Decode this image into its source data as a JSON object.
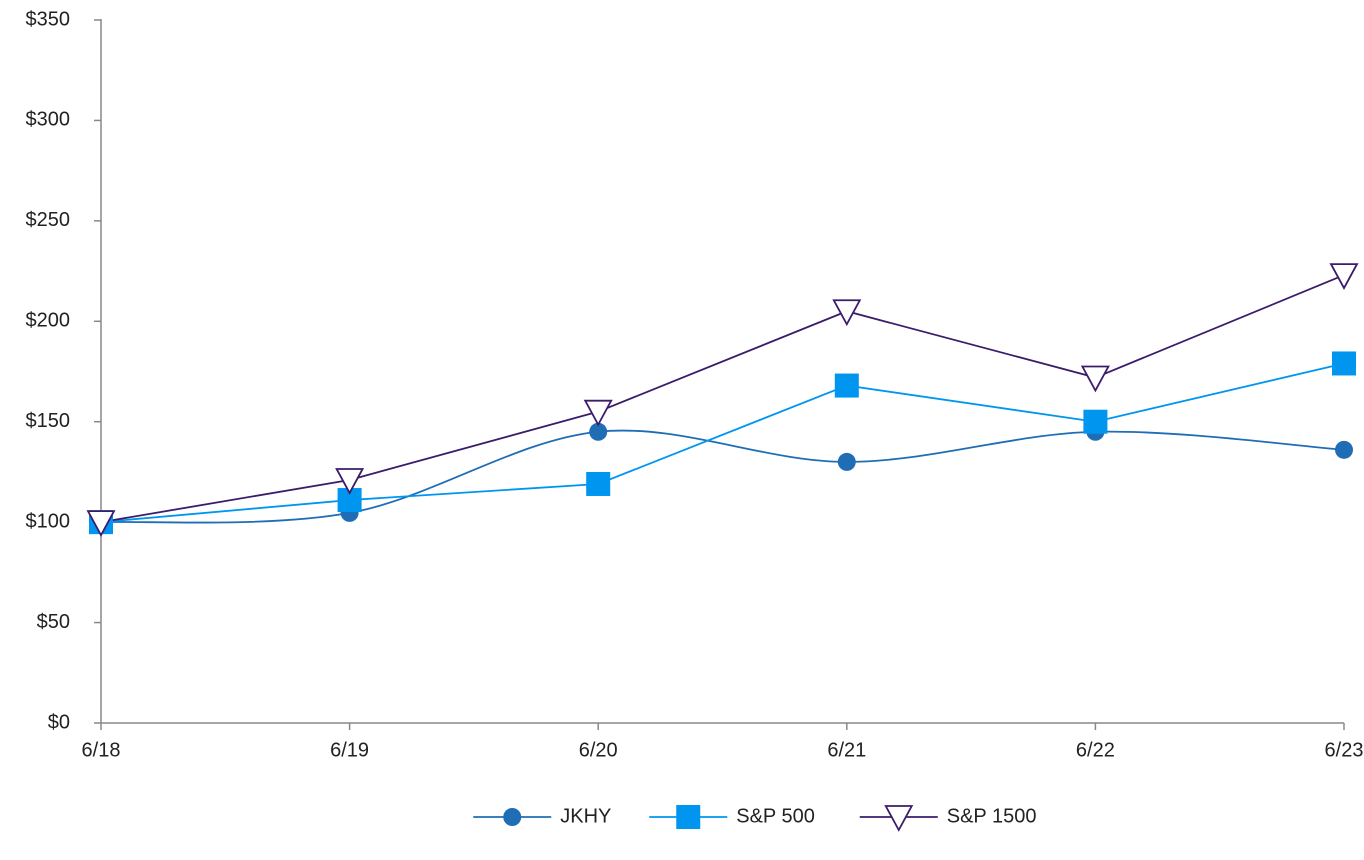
{
  "chart_data": {
    "type": "line",
    "categories": [
      "6/18",
      "6/19",
      "6/20",
      "6/21",
      "6/22",
      "6/23"
    ],
    "series": [
      {
        "name": "JKHY",
        "color": "#1f6db5",
        "marker": "circle",
        "smooth": true,
        "values": [
          100,
          104.6,
          145,
          130,
          145,
          136
        ]
      },
      {
        "name": "S&P 500",
        "color": "#0096f0",
        "marker": "square",
        "smooth": false,
        "values": [
          100,
          111,
          119,
          168,
          150,
          179
        ]
      },
      {
        "name": "S&P 1500",
        "color": "#3b1c6b",
        "marker": "triangle-down",
        "smooth": false,
        "values": [
          100,
          121,
          155,
          205,
          172,
          223
        ]
      }
    ],
    "ylim": [
      0,
      350
    ],
    "yticks": [
      {
        "value": 0,
        "label": "$0"
      },
      {
        "value": 50,
        "label": "$50"
      },
      {
        "value": 100,
        "label": "$100"
      },
      {
        "value": 150,
        "label": "$150"
      },
      {
        "value": 200,
        "label": "$200"
      },
      {
        "value": 250,
        "label": "$250"
      },
      {
        "value": 300,
        "label": "$300"
      },
      {
        "value": 350,
        "label": "$350"
      }
    ],
    "grid": false,
    "legend": "bottom"
  }
}
